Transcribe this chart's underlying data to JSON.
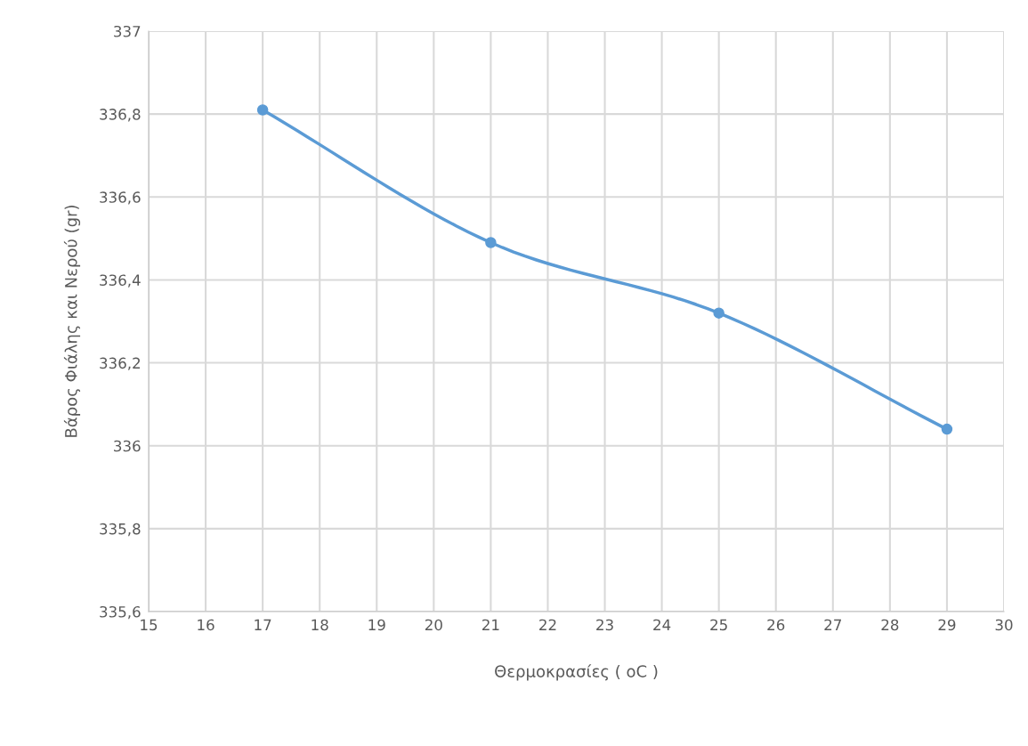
{
  "chart_data": {
    "type": "line",
    "xlabel": "Θερμοκρασίες ( oC )",
    "ylabel": "Βάρος Φιάλης και Νερού (gr)",
    "x": [
      17,
      21,
      25,
      29
    ],
    "series": [
      {
        "color": "#5b9bd5",
        "values": [
          336.81,
          336.49,
          336.32,
          336.04
        ]
      }
    ],
    "xlim": [
      15,
      30
    ],
    "xticks": [
      15,
      16,
      17,
      18,
      19,
      20,
      21,
      22,
      23,
      24,
      25,
      26,
      27,
      28,
      29,
      30
    ],
    "ylim": [
      335.6,
      337
    ],
    "yticks": [
      {
        "value": 335.6,
        "label": "335,6"
      },
      {
        "value": 335.8,
        "label": "335,8"
      },
      336,
      {
        "value": 336.2,
        "label": "336,2"
      },
      {
        "value": 336.4,
        "label": "336,4"
      },
      {
        "value": 336.6,
        "label": "336,6"
      },
      {
        "value": 336.8,
        "label": "336,8"
      },
      337
    ],
    "grid": true,
    "marker": "circle",
    "line_style": "solid",
    "legend": false
  }
}
